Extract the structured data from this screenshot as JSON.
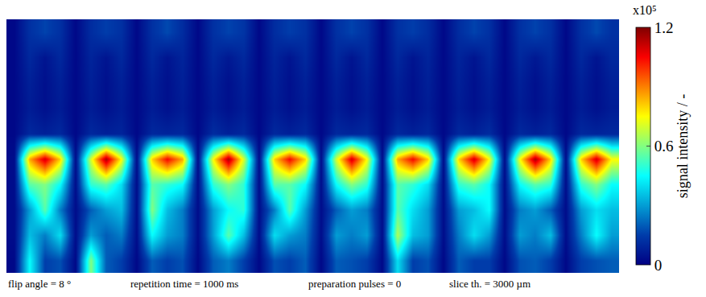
{
  "chart_data": {
    "type": "heatmap",
    "color": "Jet",
    "tick_labels": false,
    "colorbar": {
      "title": "signal intensity / -",
      "multiplier": "x10⁵",
      "range": [
        0,
        1.2
      ],
      "ticks": [
        0,
        0.6,
        1.2
      ]
    },
    "annotations": [
      "flip angle = 8 °",
      "repetition time = 1000 ms",
      "preparation pulses = 0",
      "slice th. = 3000 µm"
    ],
    "cells": [
      [
        0.02,
        0.12,
        0.16,
        0.12,
        0.02,
        0.11,
        0.15,
        0.12,
        0.02,
        0.12,
        0.17,
        0.11,
        0.02,
        0.12,
        0.16,
        0.13,
        0.02,
        0.11,
        0.15,
        0.12,
        0.02,
        0.12,
        0.16,
        0.12,
        0.02,
        0.12,
        0.15,
        0.11,
        0.02,
        0.11,
        0.16,
        0.12,
        0.02,
        0.12,
        0.16,
        0.12,
        0.02,
        0.12,
        0.17,
        0.12
      ],
      [
        0.02,
        0.1,
        0.05,
        0.1,
        0.02,
        0.09,
        0.05,
        0.1,
        0.02,
        0.1,
        0.05,
        0.09,
        0.02,
        0.1,
        0.06,
        0.1,
        0.02,
        0.09,
        0.05,
        0.1,
        0.02,
        0.1,
        0.05,
        0.1,
        0.02,
        0.1,
        0.05,
        0.09,
        0.02,
        0.09,
        0.05,
        0.1,
        0.02,
        0.1,
        0.06,
        0.1,
        0.02,
        0.1,
        0.05,
        0.1
      ],
      [
        0.02,
        0.08,
        0.04,
        0.08,
        0.02,
        0.08,
        0.04,
        0.08,
        0.02,
        0.08,
        0.04,
        0.08,
        0.02,
        0.08,
        0.04,
        0.08,
        0.02,
        0.08,
        0.04,
        0.08,
        0.02,
        0.08,
        0.04,
        0.08,
        0.02,
        0.08,
        0.04,
        0.08,
        0.02,
        0.08,
        0.04,
        0.08,
        0.02,
        0.08,
        0.04,
        0.08,
        0.02,
        0.08,
        0.04,
        0.08
      ],
      [
        0.02,
        0.07,
        0.04,
        0.07,
        0.02,
        0.07,
        0.04,
        0.07,
        0.02,
        0.07,
        0.04,
        0.07,
        0.02,
        0.07,
        0.04,
        0.07,
        0.02,
        0.07,
        0.04,
        0.07,
        0.02,
        0.07,
        0.04,
        0.07,
        0.02,
        0.07,
        0.04,
        0.07,
        0.02,
        0.07,
        0.04,
        0.07,
        0.02,
        0.07,
        0.04,
        0.07,
        0.02,
        0.07,
        0.04,
        0.07
      ],
      [
        0.02,
        0.1,
        0.08,
        0.1,
        0.02,
        0.1,
        0.08,
        0.09,
        0.02,
        0.1,
        0.09,
        0.1,
        0.02,
        0.11,
        0.08,
        0.1,
        0.02,
        0.1,
        0.08,
        0.1,
        0.02,
        0.1,
        0.09,
        0.1,
        0.02,
        0.1,
        0.08,
        0.1,
        0.02,
        0.1,
        0.08,
        0.11,
        0.02,
        0.1,
        0.08,
        0.1,
        0.02,
        0.1,
        0.09,
        0.1
      ],
      [
        0.03,
        0.85,
        1.1,
        0.8,
        0.03,
        0.7,
        1.15,
        0.75,
        0.03,
        0.8,
        1.05,
        0.85,
        0.03,
        0.75,
        1.15,
        0.7,
        0.03,
        0.8,
        1.05,
        0.8,
        0.03,
        0.7,
        1.1,
        0.75,
        0.03,
        0.85,
        1.05,
        0.8,
        0.03,
        0.8,
        1.1,
        0.75,
        0.03,
        0.75,
        1.15,
        0.8,
        0.03,
        0.8,
        1.1,
        0.75
      ],
      [
        0.03,
        0.55,
        0.6,
        0.45,
        0.03,
        0.5,
        0.55,
        0.4,
        0.03,
        0.55,
        0.5,
        0.45,
        0.03,
        0.5,
        0.6,
        0.5,
        0.03,
        0.55,
        0.55,
        0.45,
        0.03,
        0.45,
        0.6,
        0.5,
        0.03,
        0.55,
        0.5,
        0.4,
        0.03,
        0.5,
        0.55,
        0.45,
        0.03,
        0.45,
        0.55,
        0.5,
        0.03,
        0.5,
        0.6,
        0.45
      ],
      [
        0.03,
        0.3,
        0.55,
        0.25,
        0.03,
        0.2,
        0.3,
        0.35,
        0.03,
        0.6,
        0.35,
        0.25,
        0.03,
        0.3,
        0.45,
        0.5,
        0.03,
        0.25,
        0.55,
        0.3,
        0.03,
        0.2,
        0.3,
        0.25,
        0.03,
        0.55,
        0.4,
        0.3,
        0.03,
        0.3,
        0.35,
        0.45,
        0.03,
        0.25,
        0.3,
        0.2,
        0.03,
        0.3,
        0.4,
        0.35
      ],
      [
        0.03,
        0.35,
        0.25,
        0.4,
        0.03,
        0.3,
        0.2,
        0.25,
        0.03,
        0.45,
        0.3,
        0.25,
        0.03,
        0.3,
        0.55,
        0.35,
        0.03,
        0.4,
        0.3,
        0.25,
        0.03,
        0.3,
        0.25,
        0.3,
        0.03,
        0.65,
        0.35,
        0.3,
        0.03,
        0.25,
        0.4,
        0.3,
        0.03,
        0.3,
        0.25,
        0.35,
        0.03,
        0.25,
        0.45,
        0.3
      ],
      [
        0.02,
        0.45,
        0.15,
        0.18,
        0.02,
        0.6,
        0.2,
        0.15,
        0.02,
        0.2,
        0.15,
        0.18,
        0.02,
        0.2,
        0.25,
        0.15,
        0.02,
        0.18,
        0.15,
        0.2,
        0.02,
        0.2,
        0.18,
        0.15,
        0.02,
        0.4,
        0.15,
        0.18,
        0.02,
        0.2,
        0.15,
        0.15,
        0.02,
        0.18,
        0.2,
        0.15,
        0.02,
        0.15,
        0.18,
        0.2
      ]
    ]
  }
}
